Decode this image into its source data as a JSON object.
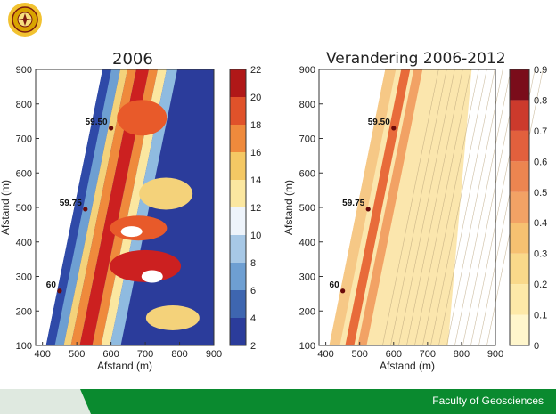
{
  "slide": {
    "footer_text": "Faculty of Geosciences",
    "colors": {
      "footer_green": "#0a8a2f",
      "footer_light": "#dfe9e0",
      "logo_gold": "#d9a400",
      "logo_dark": "#7a1a10"
    },
    "logo_icon": "university-seal-icon"
  },
  "chart_data": [
    {
      "type": "heatmap",
      "title": "2006",
      "xlabel": "Afstand (m)",
      "ylabel": "Afstand (m)",
      "xlim": [
        380,
        900
      ],
      "ylim": [
        100,
        900
      ],
      "x_ticks": [
        400,
        500,
        600,
        700,
        800,
        900
      ],
      "y_ticks": [
        100,
        200,
        300,
        400,
        500,
        600,
        700,
        800,
        900
      ],
      "colorbar": {
        "min": 2,
        "max": 22,
        "ticks": [
          2,
          4,
          6,
          8,
          10,
          12,
          14,
          16,
          18,
          20,
          22
        ]
      },
      "points": [
        {
          "label": "59.50",
          "x": 600,
          "y": 730
        },
        {
          "label": "59.75",
          "x": 525,
          "y": 495
        },
        {
          "label": "60",
          "x": 450,
          "y": 258
        }
      ]
    },
    {
      "type": "heatmap",
      "title": "Verandering 2006-2012",
      "xlabel": "Afstand (m)",
      "ylabel": "Afstand (m)",
      "xlim": [
        380,
        900
      ],
      "ylim": [
        100,
        900
      ],
      "x_ticks": [
        400,
        500,
        600,
        700,
        800,
        900
      ],
      "y_ticks": [
        100,
        200,
        300,
        400,
        500,
        600,
        700,
        800,
        900
      ],
      "colorbar": {
        "min": 0,
        "max": 0.9,
        "ticks": [
          0,
          0.1,
          0.2,
          0.3,
          0.4,
          0.5,
          0.6,
          0.7,
          0.8,
          0.9
        ]
      },
      "points": [
        {
          "label": "59.50",
          "x": 600,
          "y": 730
        },
        {
          "label": "59.75",
          "x": 525,
          "y": 495
        },
        {
          "label": "60",
          "x": 450,
          "y": 258
        }
      ]
    }
  ]
}
